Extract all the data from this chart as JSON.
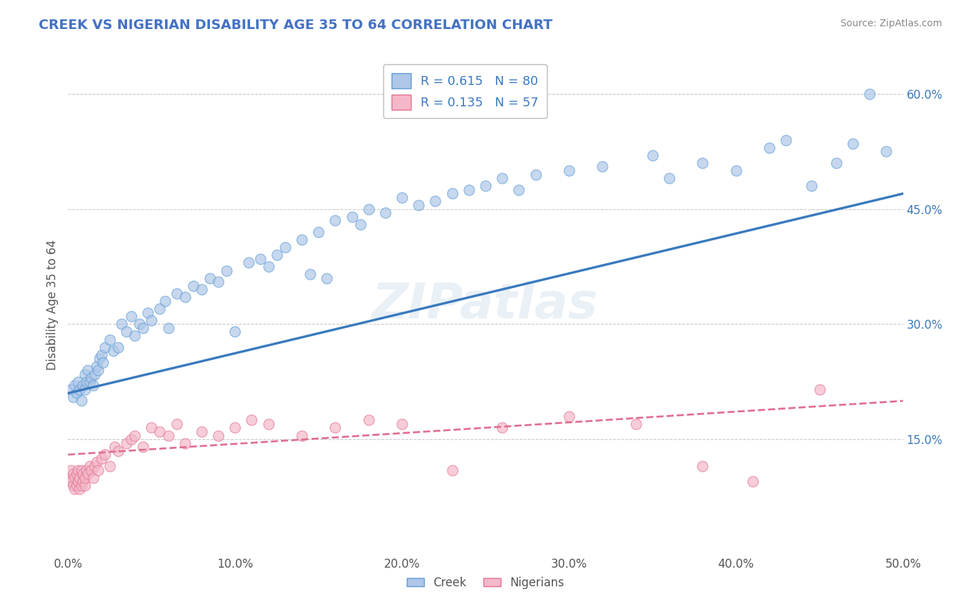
{
  "title": "CREEK VS NIGERIAN DISABILITY AGE 35 TO 64 CORRELATION CHART",
  "source": "Source: ZipAtlas.com",
  "ylabel": "Disability Age 35 to 64",
  "xlim": [
    0.0,
    0.5
  ],
  "ylim": [
    0.0,
    0.65
  ],
  "xtick_labels": [
    "0.0%",
    "10.0%",
    "20.0%",
    "30.0%",
    "40.0%",
    "50.0%"
  ],
  "xtick_vals": [
    0.0,
    0.1,
    0.2,
    0.3,
    0.4,
    0.5
  ],
  "ytick_labels": [
    "15.0%",
    "30.0%",
    "45.0%",
    "60.0%"
  ],
  "ytick_vals": [
    0.15,
    0.3,
    0.45,
    0.6
  ],
  "creek_color": "#aec6e8",
  "creek_edge_color": "#5b9bd5",
  "nigerian_color": "#f4b8c8",
  "nigerian_edge_color": "#e07090",
  "creek_line_color": "#3a7abf",
  "nigerian_line_color": "#e07090",
  "creek_R": 0.615,
  "creek_N": 80,
  "nigerian_R": 0.135,
  "nigerian_N": 57,
  "watermark": "ZIPatlas",
  "legend_labels": [
    "Creek",
    "Nigerians"
  ],
  "background_color": "#ffffff",
  "grid_color": "#c8c8c8",
  "title_color": "#4472c4",
  "label_color": "#555555",
  "creek_trend": [
    0.21,
    0.47
  ],
  "nigerian_trend": [
    0.13,
    0.2
  ],
  "creek_scatter_x": [
    0.002,
    0.003,
    0.004,
    0.005,
    0.006,
    0.007,
    0.008,
    0.009,
    0.01,
    0.01,
    0.011,
    0.012,
    0.013,
    0.014,
    0.015,
    0.016,
    0.017,
    0.018,
    0.019,
    0.02,
    0.021,
    0.022,
    0.025,
    0.027,
    0.03,
    0.032,
    0.035,
    0.038,
    0.04,
    0.043,
    0.045,
    0.048,
    0.05,
    0.055,
    0.058,
    0.06,
    0.065,
    0.07,
    0.075,
    0.08,
    0.085,
    0.09,
    0.095,
    0.1,
    0.108,
    0.115,
    0.12,
    0.125,
    0.13,
    0.14,
    0.145,
    0.15,
    0.155,
    0.16,
    0.17,
    0.175,
    0.18,
    0.19,
    0.2,
    0.21,
    0.22,
    0.23,
    0.24,
    0.25,
    0.26,
    0.27,
    0.28,
    0.3,
    0.32,
    0.35,
    0.36,
    0.38,
    0.4,
    0.42,
    0.43,
    0.445,
    0.46,
    0.47,
    0.48,
    0.49
  ],
  "creek_scatter_y": [
    0.215,
    0.205,
    0.22,
    0.21,
    0.225,
    0.215,
    0.2,
    0.22,
    0.235,
    0.215,
    0.225,
    0.24,
    0.225,
    0.23,
    0.22,
    0.235,
    0.245,
    0.24,
    0.255,
    0.26,
    0.25,
    0.27,
    0.28,
    0.265,
    0.27,
    0.3,
    0.29,
    0.31,
    0.285,
    0.3,
    0.295,
    0.315,
    0.305,
    0.32,
    0.33,
    0.295,
    0.34,
    0.335,
    0.35,
    0.345,
    0.36,
    0.355,
    0.37,
    0.29,
    0.38,
    0.385,
    0.375,
    0.39,
    0.4,
    0.41,
    0.365,
    0.42,
    0.36,
    0.435,
    0.44,
    0.43,
    0.45,
    0.445,
    0.465,
    0.455,
    0.46,
    0.47,
    0.475,
    0.48,
    0.49,
    0.475,
    0.495,
    0.5,
    0.505,
    0.52,
    0.49,
    0.51,
    0.5,
    0.53,
    0.54,
    0.48,
    0.51,
    0.535,
    0.6,
    0.525
  ],
  "nigerian_scatter_x": [
    0.001,
    0.002,
    0.002,
    0.003,
    0.003,
    0.004,
    0.004,
    0.005,
    0.005,
    0.006,
    0.006,
    0.007,
    0.007,
    0.008,
    0.008,
    0.009,
    0.009,
    0.01,
    0.01,
    0.011,
    0.012,
    0.013,
    0.014,
    0.015,
    0.016,
    0.017,
    0.018,
    0.02,
    0.022,
    0.025,
    0.028,
    0.03,
    0.035,
    0.038,
    0.04,
    0.045,
    0.05,
    0.055,
    0.06,
    0.065,
    0.07,
    0.08,
    0.09,
    0.1,
    0.11,
    0.12,
    0.14,
    0.16,
    0.18,
    0.2,
    0.23,
    0.26,
    0.3,
    0.34,
    0.38,
    0.41,
    0.45
  ],
  "nigerian_scatter_y": [
    0.1,
    0.095,
    0.11,
    0.09,
    0.105,
    0.085,
    0.1,
    0.09,
    0.105,
    0.095,
    0.11,
    0.085,
    0.1,
    0.09,
    0.11,
    0.095,
    0.105,
    0.09,
    0.1,
    0.11,
    0.105,
    0.115,
    0.11,
    0.1,
    0.115,
    0.12,
    0.11,
    0.125,
    0.13,
    0.115,
    0.14,
    0.135,
    0.145,
    0.15,
    0.155,
    0.14,
    0.165,
    0.16,
    0.155,
    0.17,
    0.145,
    0.16,
    0.155,
    0.165,
    0.175,
    0.17,
    0.155,
    0.165,
    0.175,
    0.17,
    0.11,
    0.165,
    0.18,
    0.17,
    0.115,
    0.095,
    0.215
  ]
}
